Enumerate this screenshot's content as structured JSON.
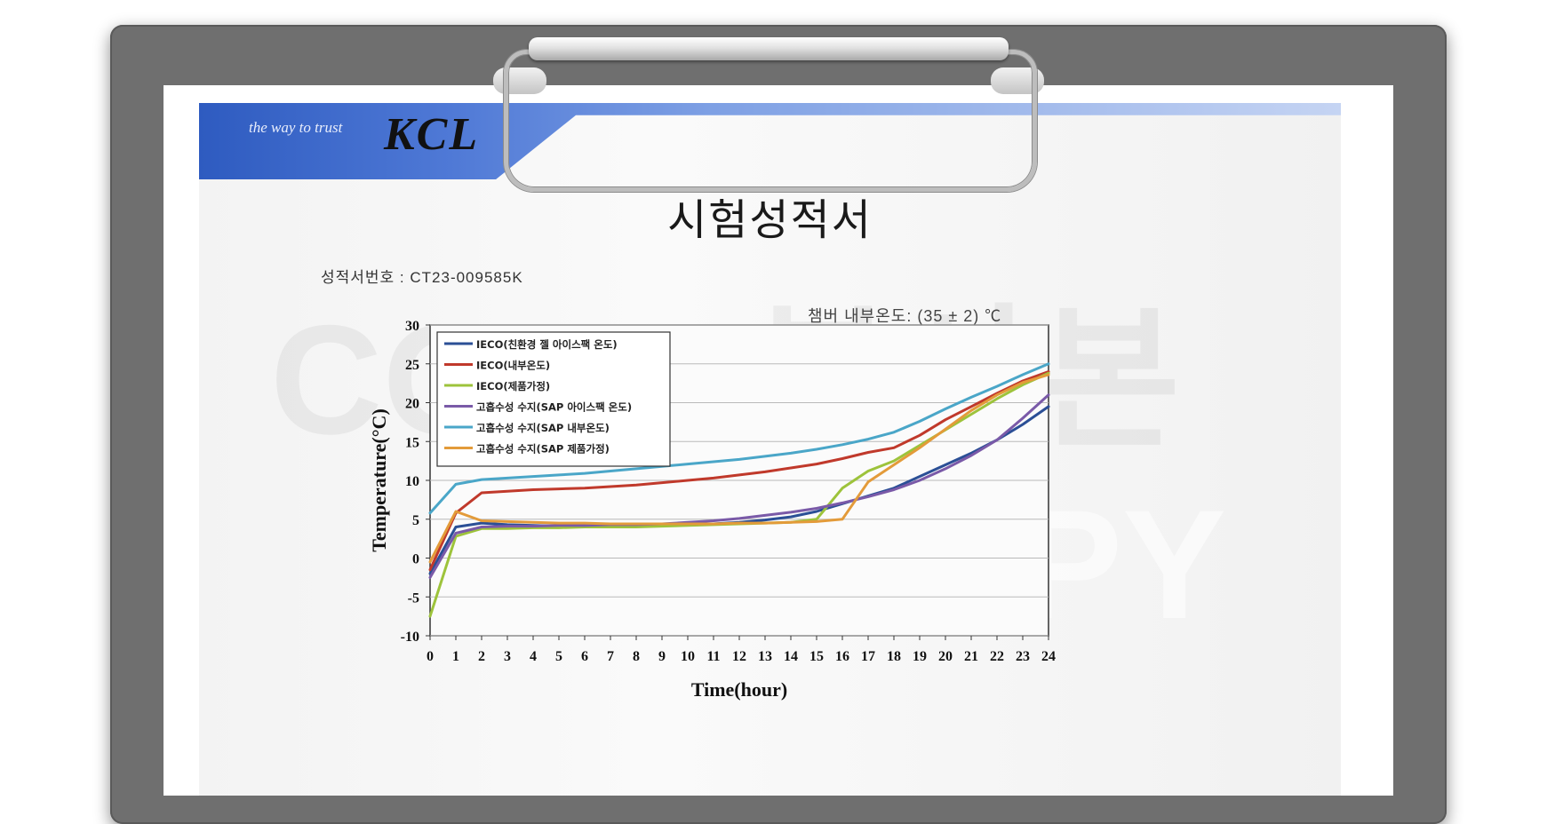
{
  "document": {
    "tagline": "the way to trust",
    "logo": "KCL",
    "title": "시험성적서",
    "certificate_number": "성적서번호 : CT23-009585K",
    "chamber_note": "챔버 내부온도: (35 ± 2) ℃",
    "watermark_top": "COPY 복사본",
    "watermark_bottom": "COPY"
  },
  "chart_data": {
    "type": "line",
    "xlabel": "Time(hour)",
    "ylabel": "Temperature(°C)",
    "xlim": [
      0,
      24
    ],
    "ylim": [
      -10,
      30
    ],
    "yticks": [
      -10,
      -5,
      0,
      5,
      10,
      15,
      20,
      25,
      30
    ],
    "grid": true,
    "legend_position": "top-left",
    "x": [
      0,
      1,
      2,
      3,
      4,
      5,
      6,
      7,
      8,
      9,
      10,
      11,
      12,
      13,
      14,
      15,
      16,
      17,
      18,
      19,
      20,
      21,
      22,
      23,
      24
    ],
    "series": [
      {
        "name": "IECO(친환경 젤 아이스팩 온도)",
        "color": "#2b4f96",
        "values": [
          -2,
          4,
          4.5,
          4.3,
          4.2,
          4.1,
          4.2,
          4.2,
          4.2,
          4.3,
          4.3,
          4.4,
          4.6,
          4.9,
          5.3,
          6.0,
          7.0,
          8.0,
          9.0,
          10.5,
          12.0,
          13.5,
          15.2,
          17.2,
          19.5
        ]
      },
      {
        "name": "IECO(내부온도)",
        "color": "#c0392b",
        "values": [
          -1.5,
          5.8,
          8.4,
          8.6,
          8.8,
          8.9,
          9.0,
          9.2,
          9.4,
          9.7,
          10.0,
          10.3,
          10.7,
          11.1,
          11.6,
          12.1,
          12.8,
          13.6,
          14.2,
          15.8,
          17.8,
          19.5,
          21.2,
          22.8,
          24.0
        ]
      },
      {
        "name": "IECO(제품가정)",
        "color": "#9dc33b",
        "values": [
          -7.5,
          2.8,
          3.8,
          3.8,
          3.9,
          3.9,
          4.0,
          4.0,
          4.0,
          4.1,
          4.2,
          4.3,
          4.4,
          4.5,
          4.6,
          5.0,
          9.0,
          11.2,
          12.5,
          14.5,
          16.5,
          18.5,
          20.5,
          22.3,
          23.8
        ]
      },
      {
        "name": "고흡수성 수지(SAP 아이스팩 온도)",
        "color": "#7a5aa8",
        "values": [
          -2.5,
          3.2,
          4.0,
          4.1,
          4.1,
          4.2,
          4.2,
          4.3,
          4.3,
          4.4,
          4.6,
          4.8,
          5.1,
          5.5,
          5.9,
          6.4,
          7.1,
          7.9,
          8.8,
          10.0,
          11.5,
          13.2,
          15.2,
          18.0,
          21.0
        ]
      },
      {
        "name": "고흡수성 수지(SAP 내부온도)",
        "color": "#4aa6c8",
        "values": [
          5.8,
          9.5,
          10.1,
          10.3,
          10.5,
          10.7,
          10.9,
          11.2,
          11.5,
          11.8,
          12.1,
          12.4,
          12.7,
          13.1,
          13.5,
          14.0,
          14.6,
          15.3,
          16.2,
          17.6,
          19.2,
          20.7,
          22.1,
          23.6,
          25.0
        ]
      },
      {
        "name": "고흡수성 수지(SAP 제품가정)",
        "color": "#e39b3a",
        "values": [
          -0.5,
          6.0,
          4.8,
          4.7,
          4.6,
          4.5,
          4.5,
          4.4,
          4.4,
          4.4,
          4.4,
          4.4,
          4.5,
          4.5,
          4.6,
          4.7,
          5.0,
          9.8,
          12.0,
          14.2,
          16.6,
          19.0,
          21.0,
          22.6,
          23.6
        ]
      }
    ]
  }
}
